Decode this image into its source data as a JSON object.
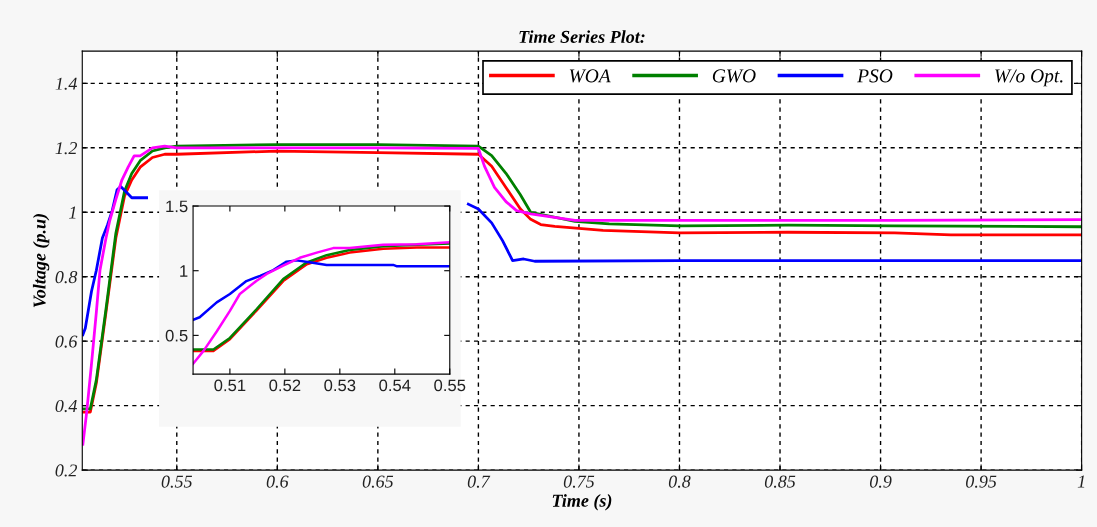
{
  "chart_data": [
    {
      "type": "line",
      "title": "Time Series Plot:",
      "xlabel": "Time (s)",
      "ylabel": "Voltage (p.u)",
      "xlim": [
        0.503,
        1
      ],
      "ylim": [
        0.2,
        1.5
      ],
      "xticks": [
        0.55,
        0.6,
        0.65,
        0.7,
        0.75,
        0.8,
        0.85,
        0.9,
        0.95,
        1
      ],
      "yticks": [
        0.2,
        0.4,
        0.6,
        0.8,
        1,
        1.2,
        1.4
      ],
      "grid": true,
      "legend": "top right",
      "line_style": "solid",
      "marker": "none",
      "series": [
        {
          "name": "WOA",
          "color": "#ff0000",
          "x": [
            0.5033,
            0.507,
            0.51,
            0.5148,
            0.5197,
            0.524,
            0.5276,
            0.5318,
            0.5379,
            0.544,
            0.55,
            0.6,
            0.65,
            0.7,
            0.7066,
            0.7137,
            0.7208,
            0.726,
            0.731,
            0.738,
            0.75,
            0.762,
            0.8,
            0.854,
            0.907,
            0.935,
            1.0
          ],
          "values": [
            0.38,
            0.38,
            0.47,
            0.69,
            0.92,
            1.05,
            1.1,
            1.14,
            1.17,
            1.18,
            1.18,
            1.19,
            1.185,
            1.18,
            1.143,
            1.077,
            1.011,
            0.978,
            0.962,
            0.956,
            0.95,
            0.944,
            0.936,
            0.938,
            0.936,
            0.93,
            0.93
          ]
        },
        {
          "name": "GWO",
          "color": "#008000",
          "x": [
            0.5033,
            0.507,
            0.51,
            0.5148,
            0.5197,
            0.524,
            0.5276,
            0.5318,
            0.5379,
            0.544,
            0.55,
            0.6,
            0.65,
            0.7,
            0.7066,
            0.7137,
            0.7208,
            0.726,
            0.748,
            0.765,
            0.8,
            0.854,
            0.907,
            1.0
          ],
          "values": [
            0.39,
            0.39,
            0.48,
            0.7,
            0.935,
            1.065,
            1.12,
            1.16,
            1.19,
            1.2,
            1.205,
            1.21,
            1.21,
            1.205,
            1.176,
            1.121,
            1.055,
            1.0,
            0.972,
            0.964,
            0.958,
            0.96,
            0.958,
            0.955
          ]
        },
        {
          "name": "PSO",
          "color": "#0000ff",
          "x": [
            0.5033,
            0.5045,
            0.5076,
            0.51,
            0.513,
            0.5155,
            0.5179,
            0.5203,
            0.5221,
            0.5245,
            0.5276,
            0.535,
            0.6,
            0.65,
            0.695,
            0.7,
            0.7066,
            0.712,
            0.717,
            0.7225,
            0.728,
            0.8,
            0.9,
            1.0
          ],
          "values": [
            0.62,
            0.64,
            0.755,
            0.82,
            0.92,
            0.96,
            1.005,
            1.07,
            1.08,
            1.065,
            1.045,
            1.045,
            null,
            null,
            1.025,
            1.01,
            0.967,
            0.912,
            0.85,
            0.855,
            0.848,
            0.85,
            0.85,
            0.85
          ]
        },
        {
          "name": "W/o Opt.",
          "color": "#ff00ff",
          "x": [
            0.5033,
            0.5052,
            0.5076,
            0.51,
            0.5118,
            0.5148,
            0.5167,
            0.5197,
            0.5227,
            0.5258,
            0.5288,
            0.5318,
            0.5379,
            0.544,
            0.55,
            0.6,
            0.65,
            0.7,
            0.703,
            0.708,
            0.7137,
            0.719,
            0.726,
            0.748,
            0.8,
            0.907,
            1.0
          ],
          "values": [
            0.28,
            0.38,
            0.53,
            0.69,
            0.82,
            0.92,
            0.975,
            1.04,
            1.1,
            1.14,
            1.175,
            1.175,
            1.2,
            1.205,
            1.2,
            1.2,
            1.2,
            1.198,
            1.143,
            1.077,
            1.033,
            1.005,
            0.995,
            0.975,
            0.975,
            0.975,
            0.977
          ]
        }
      ]
    },
    {
      "type": "line",
      "xlim": [
        0.5033,
        0.55
      ],
      "ylim": [
        0.2,
        1.5
      ],
      "xticks": [
        0.51,
        0.52,
        0.53,
        0.54,
        0.55
      ],
      "yticks": [
        0.5,
        1,
        1.5
      ],
      "grid": false,
      "line_style": "solid",
      "marker": "none",
      "series": [
        {
          "color": "#ff0000",
          "x": [
            0.5033,
            0.507,
            0.51,
            0.5148,
            0.5197,
            0.524,
            0.5276,
            0.5318,
            0.5379,
            0.544,
            0.55
          ],
          "values": [
            0.38,
            0.38,
            0.47,
            0.69,
            0.92,
            1.05,
            1.1,
            1.14,
            1.17,
            1.18,
            1.18
          ]
        },
        {
          "color": "#008000",
          "x": [
            0.5033,
            0.507,
            0.51,
            0.5148,
            0.5197,
            0.524,
            0.5276,
            0.5318,
            0.5379,
            0.544,
            0.55
          ],
          "values": [
            0.39,
            0.39,
            0.48,
            0.7,
            0.935,
            1.065,
            1.12,
            1.16,
            1.19,
            1.2,
            1.21
          ]
        },
        {
          "color": "#0000ff",
          "x": [
            0.5033,
            0.5045,
            0.5076,
            0.51,
            0.513,
            0.5155,
            0.5179,
            0.5203,
            0.5221,
            0.5245,
            0.5276,
            0.5318,
            0.5397,
            0.5403,
            0.55
          ],
          "values": [
            0.62,
            0.64,
            0.755,
            0.82,
            0.92,
            0.96,
            1.005,
            1.07,
            1.08,
            1.065,
            1.045,
            1.045,
            1.045,
            1.035,
            1.035
          ]
        },
        {
          "color": "#ff00ff",
          "x": [
            0.5033,
            0.5052,
            0.5076,
            0.51,
            0.5118,
            0.5148,
            0.5167,
            0.5197,
            0.5227,
            0.5258,
            0.5288,
            0.5318,
            0.5379,
            0.544,
            0.55
          ],
          "values": [
            0.28,
            0.38,
            0.53,
            0.69,
            0.82,
            0.92,
            0.975,
            1.04,
            1.1,
            1.14,
            1.175,
            1.175,
            1.2,
            1.205,
            1.22
          ]
        }
      ]
    }
  ]
}
